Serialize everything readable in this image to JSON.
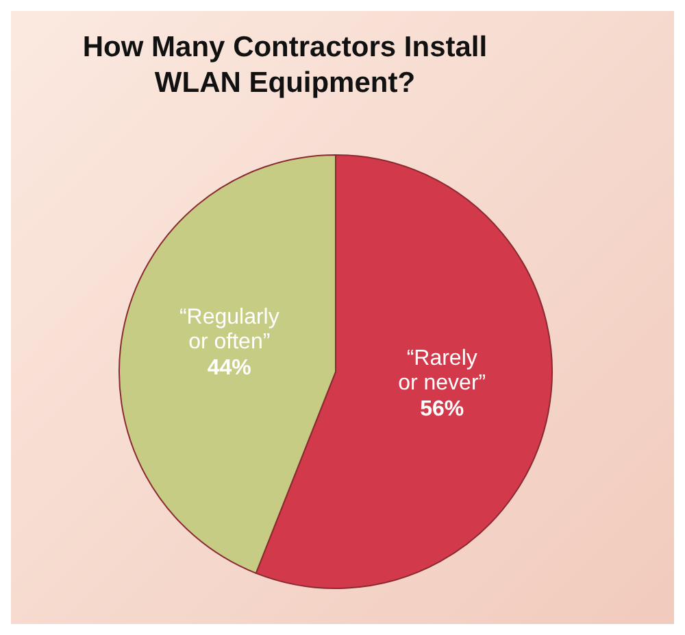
{
  "chart_data": {
    "type": "pie",
    "title": "How Many Contractors Install WLAN Equipment?",
    "categories": [
      "“Rarely or never”",
      "“Regularly or often”"
    ],
    "values": [
      56,
      44
    ],
    "colors": [
      "#d23a4b",
      "#c6cc84"
    ],
    "value_labels": [
      "56%",
      "44%"
    ]
  }
}
